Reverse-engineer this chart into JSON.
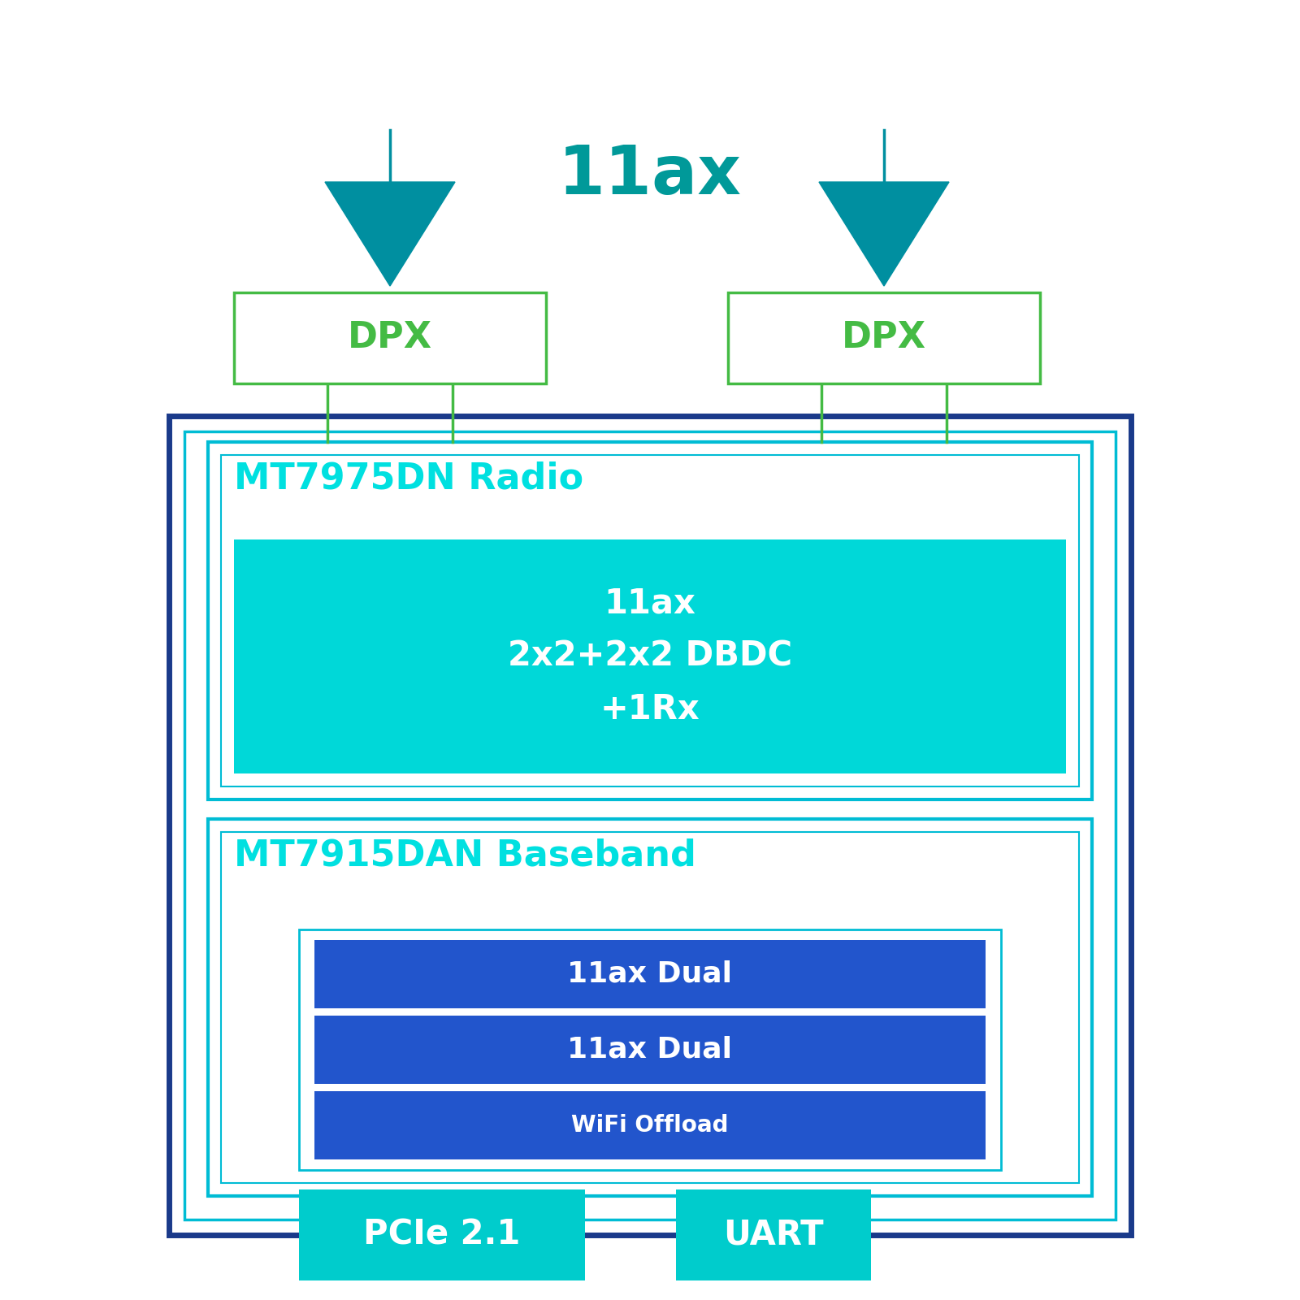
{
  "bg_color": "#ffffff",
  "title_11ax": "11ax",
  "title_11ax_color": "#009999",
  "title_11ax_fontsize": 60,
  "antenna_color": "#008fa0",
  "dpx_border_color": "#44bb44",
  "dpx_text_color": "#44bb44",
  "dpx_text": "DPX",
  "dpx_fontsize": 32,
  "outer_box_border_color": "#1a3a8a",
  "outer_box_bg": "#ffffff",
  "radio_box_border_color": "#00bcd4",
  "radio_box_bg": "#ffffff",
  "radio_title": "MT7975DN Radio",
  "radio_title_color": "#00e0e0",
  "radio_title_fontsize": 32,
  "radio_inner_bg": "#00d8d8",
  "radio_inner_text": "11ax\n2x2+2x2 DBDC\n+1Rx",
  "radio_inner_text_color": "#ffffff",
  "radio_inner_fontsize": 30,
  "baseband_box_border_color": "#00bcd4",
  "baseband_box_bg": "#ffffff",
  "baseband_title": "MT7915DAN Baseband",
  "baseband_title_color": "#00e0e0",
  "baseband_title_fontsize": 32,
  "baseband_inner_border_color": "#00bcd4",
  "baseband_inner_bg": "#ffffff",
  "bb_bar1_text": "11ax Dual",
  "bb_bar2_text": "11ax Dual",
  "bb_bar3_text": "WiFi Offload",
  "bb_bar_bg": "#2255cc",
  "bb_bar_text_color": "#ffffff",
  "bb_bar1_fontsize": 26,
  "bb_bar2_fontsize": 26,
  "bb_bar3_fontsize": 20,
  "pcie_bg": "#00cccc",
  "pcie_text": "PCIe 2.1",
  "pcie_text_color": "#ffffff",
  "pcie_fontsize": 30,
  "uart_bg": "#00cccc",
  "uart_text": "UART",
  "uart_text_color": "#ffffff",
  "uart_fontsize": 30,
  "line_color_teal": "#009999",
  "line_color_green": "#44bb44",
  "outer_second_border_color": "#00bcd4"
}
